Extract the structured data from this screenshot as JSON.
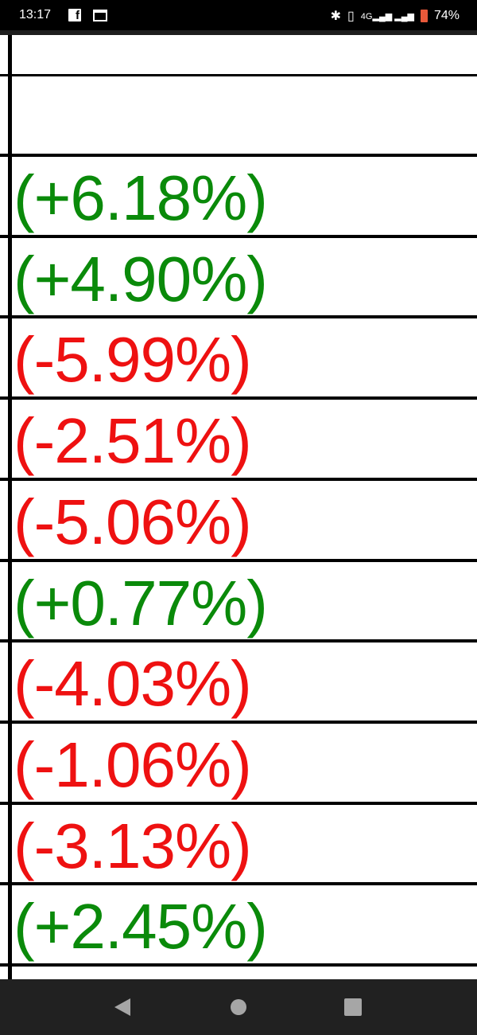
{
  "status_bar": {
    "time": "13:17",
    "battery": "74%",
    "network": "4G",
    "icons": [
      "facebook-icon",
      "calendar-icon",
      "bluetooth-icon",
      "vibrate-icon",
      "signal-icon",
      "battery-icon"
    ]
  },
  "colors": {
    "positive": "#0a8a0a",
    "negative": "#ee1111"
  },
  "rows": [
    {
      "value": ""
    },
    {
      "value": ""
    },
    {
      "value": "(+6.18%)",
      "trend": "positive"
    },
    {
      "value": "(+4.90%)",
      "trend": "positive"
    },
    {
      "value": "(-5.99%)",
      "trend": "negative"
    },
    {
      "value": "(-2.51%)",
      "trend": "negative"
    },
    {
      "value": "(-5.06%)",
      "trend": "negative"
    },
    {
      "value": "(+0.77%)",
      "trend": "positive"
    },
    {
      "value": "(-4.03%)",
      "trend": "negative"
    },
    {
      "value": "(-1.06%)",
      "trend": "negative"
    },
    {
      "value": "(-3.13%)",
      "trend": "negative"
    },
    {
      "value": "(+2.45%)",
      "trend": "positive"
    },
    {
      "value": "",
      "trend": "negative"
    }
  ],
  "nav_bar": {
    "buttons": [
      "back",
      "home",
      "recents"
    ]
  }
}
